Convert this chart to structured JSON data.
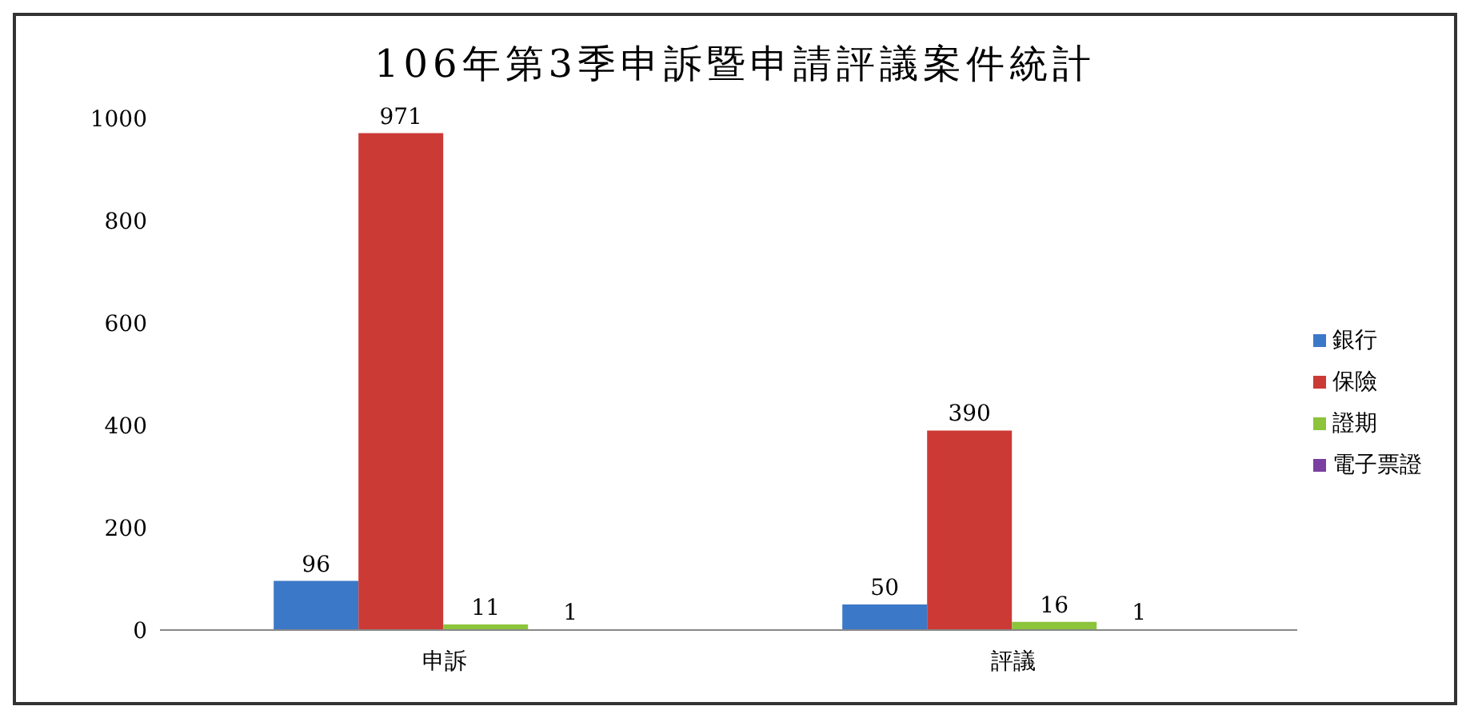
{
  "chart_data": {
    "type": "bar",
    "title": "106年第3季申訴暨申請評議案件統計",
    "categories": [
      "申訴",
      "評議"
    ],
    "series": [
      {
        "name": "銀行",
        "color": "#3c78c8",
        "values": [
          96,
          50
        ]
      },
      {
        "name": "保險",
        "color": "#cc3a36",
        "values": [
          971,
          390
        ]
      },
      {
        "name": "證期",
        "color": "#8cc43c",
        "values": [
          11,
          16
        ]
      },
      {
        "name": "電子票證",
        "color": "#7a3fa0",
        "values": [
          1,
          1
        ]
      }
    ],
    "ylim": [
      0,
      1000
    ],
    "yticks": [
      0,
      200,
      400,
      600,
      800,
      1000
    ],
    "grid": false,
    "legend": "right",
    "data_labels": true
  }
}
